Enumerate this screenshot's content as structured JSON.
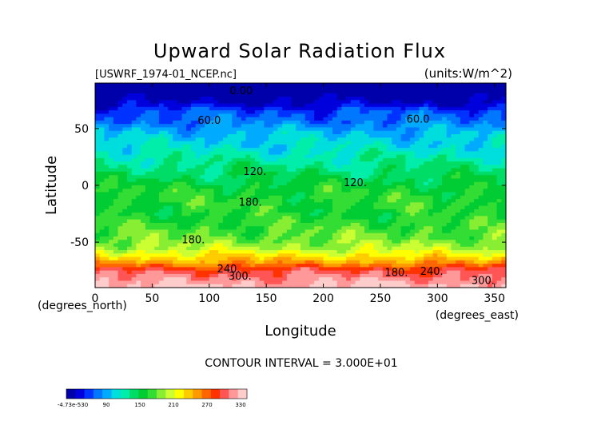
{
  "chart_data": {
    "type": "heatmap",
    "title": "Upward Solar Radiation Flux",
    "subtitle_left": "[USWRF_1974-01_NCEP.nc]",
    "subtitle_right": "(units:W/m^2)",
    "xlabel": "Longitude",
    "ylabel": "Latitude",
    "xunit_label": "(degrees_east)",
    "yunit_label": "(degrees_north)",
    "xlim": [
      0,
      360
    ],
    "ylim": [
      -90,
      90
    ],
    "xticks": [
      {
        "value": 0,
        "label": "0"
      },
      {
        "value": 50,
        "label": "50"
      },
      {
        "value": 100,
        "label": "100"
      },
      {
        "value": 150,
        "label": "150"
      },
      {
        "value": 200,
        "label": "200"
      },
      {
        "value": 250,
        "label": "250"
      },
      {
        "value": 300,
        "label": "300"
      },
      {
        "value": 350,
        "label": "350"
      }
    ],
    "yticks": [
      {
        "value": 50,
        "label": "50"
      },
      {
        "value": 0,
        "label": "0"
      },
      {
        "value": -50,
        "label": "-50"
      }
    ],
    "footer": "CONTOUR INTERVAL = 3.000E+01",
    "value_range": [
      0,
      360
    ],
    "colorbar": {
      "colors": [
        "#0000aa",
        "#0000dd",
        "#0033ff",
        "#0077ff",
        "#00aaff",
        "#00dddd",
        "#00eeaa",
        "#00dd66",
        "#00cc33",
        "#33dd33",
        "#88ee33",
        "#ccff33",
        "#ffff00",
        "#ffcc00",
        "#ff9900",
        "#ff6600",
        "#ff3300",
        "#ff5555",
        "#ff9999",
        "#ffcccc"
      ],
      "labels": [
        "-4.73e-530",
        "90",
        "150",
        "210",
        "270",
        "330"
      ]
    },
    "latitude_profile": [
      {
        "lat": 90,
        "value": 0
      },
      {
        "lat": 80,
        "value": 0
      },
      {
        "lat": 72,
        "value": 20
      },
      {
        "lat": 65,
        "value": 50
      },
      {
        "lat": 55,
        "value": 65
      },
      {
        "lat": 45,
        "value": 90
      },
      {
        "lat": 35,
        "value": 100
      },
      {
        "lat": 25,
        "value": 115
      },
      {
        "lat": 15,
        "value": 130
      },
      {
        "lat": 5,
        "value": 145
      },
      {
        "lat": -5,
        "value": 160
      },
      {
        "lat": -15,
        "value": 165
      },
      {
        "lat": -25,
        "value": 160
      },
      {
        "lat": -35,
        "value": 170
      },
      {
        "lat": -45,
        "value": 180
      },
      {
        "lat": -55,
        "value": 200
      },
      {
        "lat": -62,
        "value": 230
      },
      {
        "lat": -68,
        "value": 260
      },
      {
        "lat": -75,
        "value": 310
      },
      {
        "lat": -82,
        "value": 330
      },
      {
        "lat": -90,
        "value": 350
      }
    ],
    "contour_labels": [
      {
        "label": "0.00",
        "lon": 128,
        "lat": 83
      },
      {
        "label": "60.0",
        "lon": 100,
        "lat": 57
      },
      {
        "label": "60.0",
        "lon": 283,
        "lat": 58
      },
      {
        "label": "120.",
        "lon": 140,
        "lat": 12
      },
      {
        "label": "120.",
        "lon": 228,
        "lat": 2
      },
      {
        "label": "180.",
        "lon": 136,
        "lat": -15
      },
      {
        "label": "180.",
        "lon": 86,
        "lat": -48
      },
      {
        "label": "240.",
        "lon": 117,
        "lat": -74
      },
      {
        "label": "300.",
        "lon": 127,
        "lat": -80
      },
      {
        "label": "180.",
        "lon": 264,
        "lat": -77
      },
      {
        "label": "240.",
        "lon": 295,
        "lat": -76
      },
      {
        "label": "300.",
        "lon": 340,
        "lat": -84
      }
    ]
  }
}
